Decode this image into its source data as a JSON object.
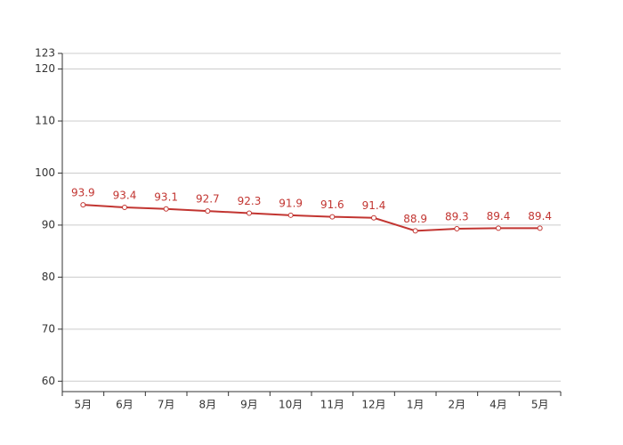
{
  "chart_data": {
    "type": "line",
    "categories": [
      "5月",
      "6月",
      "7月",
      "8月",
      "9月",
      "10月",
      "11月",
      "12月",
      "1月",
      "2月",
      "4月",
      "5月"
    ],
    "values": [
      93.9,
      93.4,
      93.1,
      92.7,
      92.3,
      91.9,
      91.6,
      91.4,
      88.9,
      89.3,
      89.4,
      89.4
    ],
    "color": "#c23531",
    "ylim": [
      58,
      123
    ],
    "yticks": [
      60,
      70,
      80,
      90,
      100,
      110,
      120,
      123
    ],
    "grid": true
  }
}
